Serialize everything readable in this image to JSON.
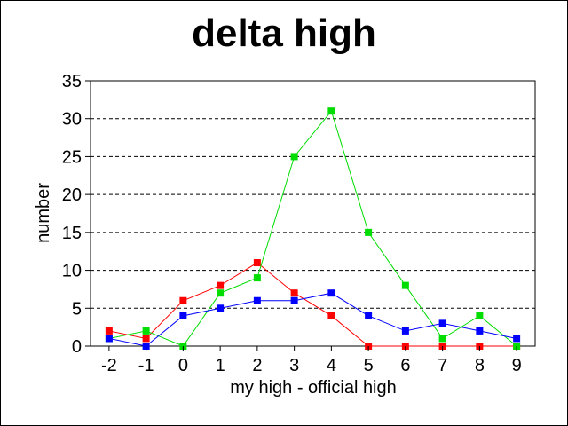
{
  "chart_data": {
    "type": "line",
    "title": "delta high",
    "xlabel": "my high - official high",
    "ylabel": "number",
    "categories": [
      "-2",
      "-1",
      "0",
      "1",
      "2",
      "3",
      "4",
      "5",
      "6",
      "7",
      "8",
      "9"
    ],
    "x": [
      -2,
      -1,
      0,
      1,
      2,
      3,
      4,
      5,
      6,
      7,
      8,
      9
    ],
    "xlim": [
      -2.5,
      9.5
    ],
    "ylim": [
      0,
      35
    ],
    "yticks": [
      "0",
      "5",
      "10",
      "15",
      "20",
      "25",
      "30",
      "35"
    ],
    "grid": "dashed horizontal at y ticks",
    "legend": "none",
    "series": [
      {
        "color": "#ff0000",
        "marker": "square",
        "values": [
          2,
          1,
          6,
          8,
          11,
          7,
          4,
          0,
          0,
          0,
          0,
          0
        ]
      },
      {
        "color": "#00dd00",
        "marker": "square",
        "values": [
          1,
          2,
          0,
          7,
          9,
          25,
          31,
          15,
          8,
          1,
          4,
          0
        ]
      },
      {
        "color": "#0000ff",
        "marker": "square",
        "values": [
          1,
          0,
          4,
          5,
          6,
          6,
          7,
          4,
          2,
          3,
          2,
          1
        ]
      }
    ]
  }
}
